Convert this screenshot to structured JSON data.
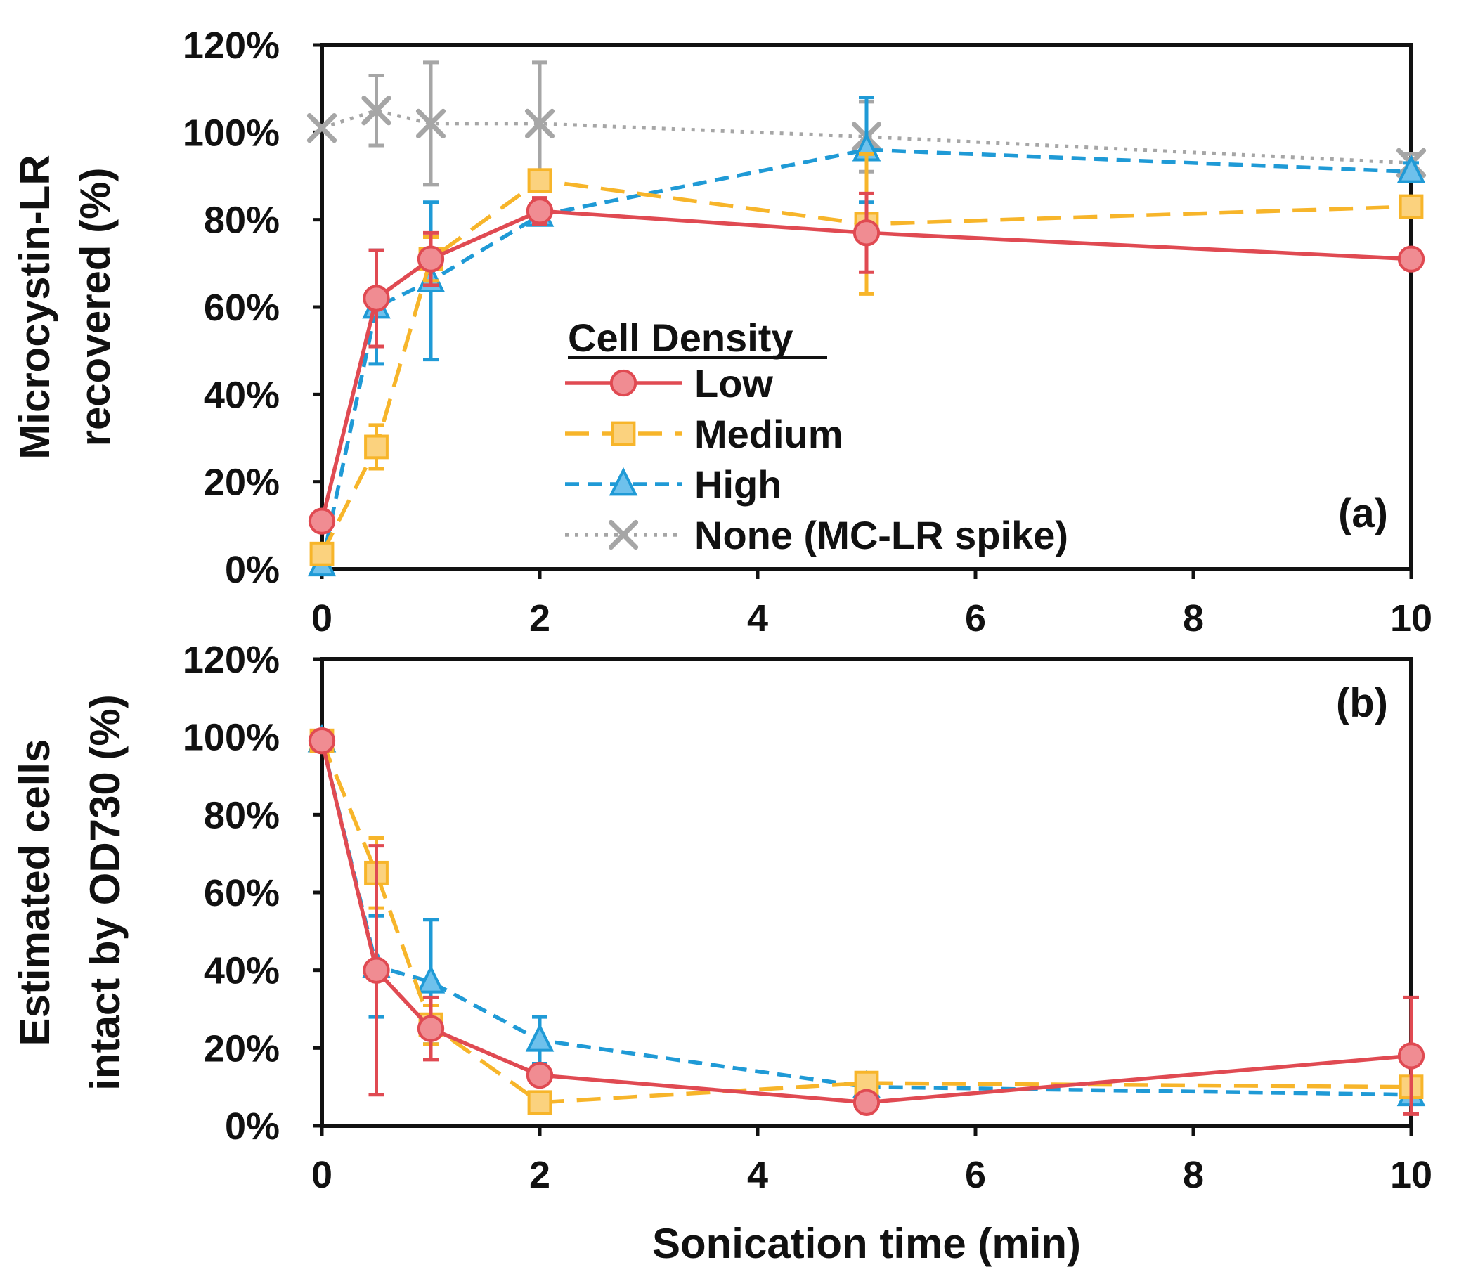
{
  "colors": {
    "low": "#e04a52",
    "medium": "#f7b52a",
    "high": "#1f9ad6",
    "none": "#a6a6a6",
    "axis": "#111111"
  },
  "legend": {
    "title": "Cell Density",
    "items": [
      {
        "key": "low",
        "label": "Low"
      },
      {
        "key": "medium",
        "label": "Medium"
      },
      {
        "key": "high",
        "label": "High"
      },
      {
        "key": "none",
        "label": "None (MC-LR spike)"
      }
    ]
  },
  "chart_data": [
    {
      "type": "line",
      "panel_label": "(a)",
      "ylabel": [
        "Microcystin-LR",
        "recovered (%)"
      ],
      "xlabel": "",
      "xlim": [
        0,
        10
      ],
      "ylim": [
        0,
        1.2
      ],
      "xticks": [
        "0",
        "2",
        "4",
        "6",
        "8",
        "10"
      ],
      "yticks": [
        "0%",
        "20%",
        "40%",
        "60%",
        "80%",
        "100%",
        "120%"
      ],
      "x": [
        0,
        0.5,
        1,
        2,
        5,
        10
      ],
      "series": [
        {
          "name": "Low",
          "key": "low",
          "values": [
            0.11,
            0.62,
            0.71,
            0.82,
            0.77,
            0.71
          ],
          "errors": [
            0,
            0.11,
            0.06,
            0.03,
            0.09,
            0.015
          ]
        },
        {
          "name": "Medium",
          "key": "medium",
          "values": [
            0.035,
            0.28,
            0.71,
            0.89,
            0.79,
            0.83
          ],
          "errors": [
            0,
            0.05,
            0.05,
            0.02,
            0.16,
            0.02
          ]
        },
        {
          "name": "High",
          "key": "high",
          "values": [
            0.01,
            0.6,
            0.66,
            0.81,
            0.96,
            0.91
          ],
          "errors": [
            0,
            0.13,
            0.18,
            0.02,
            0.12,
            0.02
          ]
        },
        {
          "name": "None (MC-LR spike)",
          "key": "none",
          "values": [
            1.01,
            1.05,
            1.02,
            1.02,
            0.99,
            0.93
          ],
          "errors": [
            0,
            0.08,
            0.14,
            0.14,
            0.08,
            0.02
          ]
        }
      ]
    },
    {
      "type": "line",
      "panel_label": "(b)",
      "ylabel": [
        "Estimated cells",
        "intact by OD730 (%)"
      ],
      "xlabel": "Sonication time (min)",
      "xlim": [
        0,
        10
      ],
      "ylim": [
        0,
        1.2
      ],
      "xticks": [
        "0",
        "2",
        "4",
        "6",
        "8",
        "10"
      ],
      "yticks": [
        "0%",
        "20%",
        "40%",
        "60%",
        "80%",
        "100%",
        "120%"
      ],
      "x": [
        0,
        0.5,
        1,
        2,
        5,
        10
      ],
      "series": [
        {
          "name": "Low",
          "key": "low",
          "values": [
            0.99,
            0.4,
            0.25,
            0.13,
            0.06,
            0.18
          ],
          "errors": [
            0,
            0.32,
            0.08,
            0.02,
            0.02,
            0.15
          ]
        },
        {
          "name": "Medium",
          "key": "medium",
          "values": [
            0.99,
            0.65,
            0.26,
            0.06,
            0.11,
            0.1
          ],
          "errors": [
            0,
            0.09,
            0.05,
            0.02,
            0.02,
            0.02
          ]
        },
        {
          "name": "High",
          "key": "high",
          "values": [
            0.99,
            0.41,
            0.37,
            0.22,
            0.1,
            0.08
          ],
          "errors": [
            0,
            0.13,
            0.16,
            0.06,
            0.02,
            0.02
          ]
        }
      ]
    }
  ]
}
